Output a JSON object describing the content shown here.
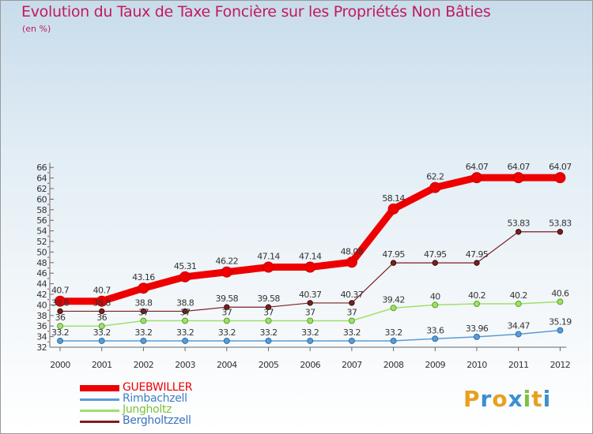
{
  "title": "Evolution du Taux de Taxe Foncière sur les Propriétés Non Bâties",
  "unit": "(en %)",
  "brand": {
    "letters": [
      "P",
      "r",
      "o",
      "x",
      "i",
      "t",
      "i"
    ],
    "colors": [
      "#e8a020",
      "#3b8fd0",
      "#e8a020",
      "#3b8fd0",
      "#7cc13b",
      "#e8a020",
      "#3b8fd0"
    ]
  },
  "chart_data": {
    "type": "line",
    "title": "Evolution du Taux de Taxe Foncière sur les Propriétés Non Bâties",
    "ylabel": "(en %)",
    "xlabel": "",
    "ylim": [
      32,
      66
    ],
    "yticks": [
      32,
      34,
      36,
      38,
      40,
      42,
      44,
      46,
      48,
      50,
      52,
      54,
      56,
      58,
      60,
      62,
      64,
      66
    ],
    "x": [
      "2000",
      "2001",
      "2002",
      "2003",
      "2004",
      "2005",
      "2006",
      "2007",
      "2008",
      "2009",
      "2010",
      "2011",
      "2012"
    ],
    "series": [
      {
        "name": "GUEBWILLER",
        "color": "#ee0000",
        "values": [
          40.7,
          40.7,
          43.16,
          45.31,
          46.22,
          47.14,
          47.14,
          48.08,
          58.14,
          62.2,
          64.07,
          64.07,
          64.07
        ],
        "labels": [
          "40.7",
          "40.7",
          "43.16",
          "45.31",
          "46.22",
          "47.14",
          "47.14",
          "48.08",
          "58.14",
          "62.2",
          "64.07",
          "64.07",
          "64.07"
        ]
      },
      {
        "name": "Rimbachzell",
        "color": "#5b9bd5",
        "values": [
          33.2,
          33.2,
          33.2,
          33.2,
          33.2,
          33.2,
          33.2,
          33.2,
          33.2,
          33.6,
          33.96,
          34.47,
          35.19
        ],
        "labels": [
          "33.2",
          "33.2",
          "33.2",
          "33.2",
          "33.2",
          "33.2",
          "33.2",
          "33.2",
          "33.2",
          "33.6",
          "33.96",
          "34.47",
          "35.19"
        ]
      },
      {
        "name": "Jungholtz",
        "color": "#9fe06a",
        "values": [
          36,
          36,
          37,
          37,
          37,
          37,
          37,
          37,
          39.42,
          40,
          40.2,
          40.2,
          40.6
        ],
        "labels": [
          "36",
          "36",
          "37",
          "37",
          "37",
          "37",
          "37",
          "37",
          "39.42",
          "40",
          "40.2",
          "40.2",
          "40.6"
        ]
      },
      {
        "name": "Bergholtzzell",
        "color": "#7a2020",
        "values": [
          38.8,
          38.8,
          38.8,
          38.8,
          39.58,
          39.58,
          40.37,
          40.37,
          47.95,
          47.95,
          47.95,
          53.83,
          53.83
        ],
        "labels": [
          "38.8",
          "38.8",
          "38.8",
          "38.8",
          "39.58",
          "39.58",
          "40.37",
          "40.37",
          "47.95",
          "47.95",
          "47.95",
          "53.83",
          "53.83"
        ]
      }
    ],
    "legend_position": "bottom-left",
    "grid": false
  }
}
